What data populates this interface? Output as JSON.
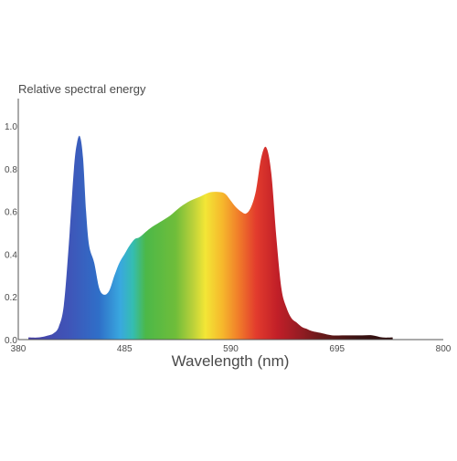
{
  "chart_data": {
    "type": "area",
    "title": "",
    "ylabel": "Relative spectral energy",
    "xlabel": "Wavelength (nm)",
    "xlim": [
      380,
      800
    ],
    "ylim": [
      0,
      1.0
    ],
    "x_ticks": [
      "380",
      "485",
      "590",
      "695",
      "800"
    ],
    "y_ticks": [
      "0.0",
      "0.2",
      "0.4",
      "0.6",
      "0.8",
      "1.0"
    ],
    "grid": false,
    "fill": "wavelength-colored spectrum gradient",
    "series": [
      {
        "x": [
          390,
          400,
          410,
          415,
          420,
          425,
          430,
          435,
          438,
          441,
          444,
          447,
          450,
          455,
          460,
          465,
          470,
          475,
          480,
          485,
          490,
          495,
          500,
          510,
          520,
          530,
          540,
          550,
          560,
          570,
          580,
          585,
          590,
          595,
          600,
          605,
          610,
          615,
          620,
          625,
          630,
          635,
          640,
          645,
          650,
          655,
          660,
          665,
          670,
          680,
          690,
          700,
          710,
          720,
          730,
          740,
          750
        ],
        "values": [
          0.01,
          0.01,
          0.02,
          0.03,
          0.06,
          0.16,
          0.45,
          0.8,
          0.92,
          0.95,
          0.85,
          0.6,
          0.44,
          0.36,
          0.24,
          0.21,
          0.23,
          0.3,
          0.36,
          0.4,
          0.44,
          0.47,
          0.48,
          0.52,
          0.55,
          0.58,
          0.62,
          0.65,
          0.67,
          0.69,
          0.69,
          0.68,
          0.65,
          0.62,
          0.6,
          0.59,
          0.62,
          0.7,
          0.85,
          0.9,
          0.78,
          0.48,
          0.24,
          0.15,
          0.1,
          0.08,
          0.06,
          0.05,
          0.04,
          0.03,
          0.02,
          0.02,
          0.02,
          0.02,
          0.02,
          0.01,
          0.01
        ]
      }
    ]
  }
}
